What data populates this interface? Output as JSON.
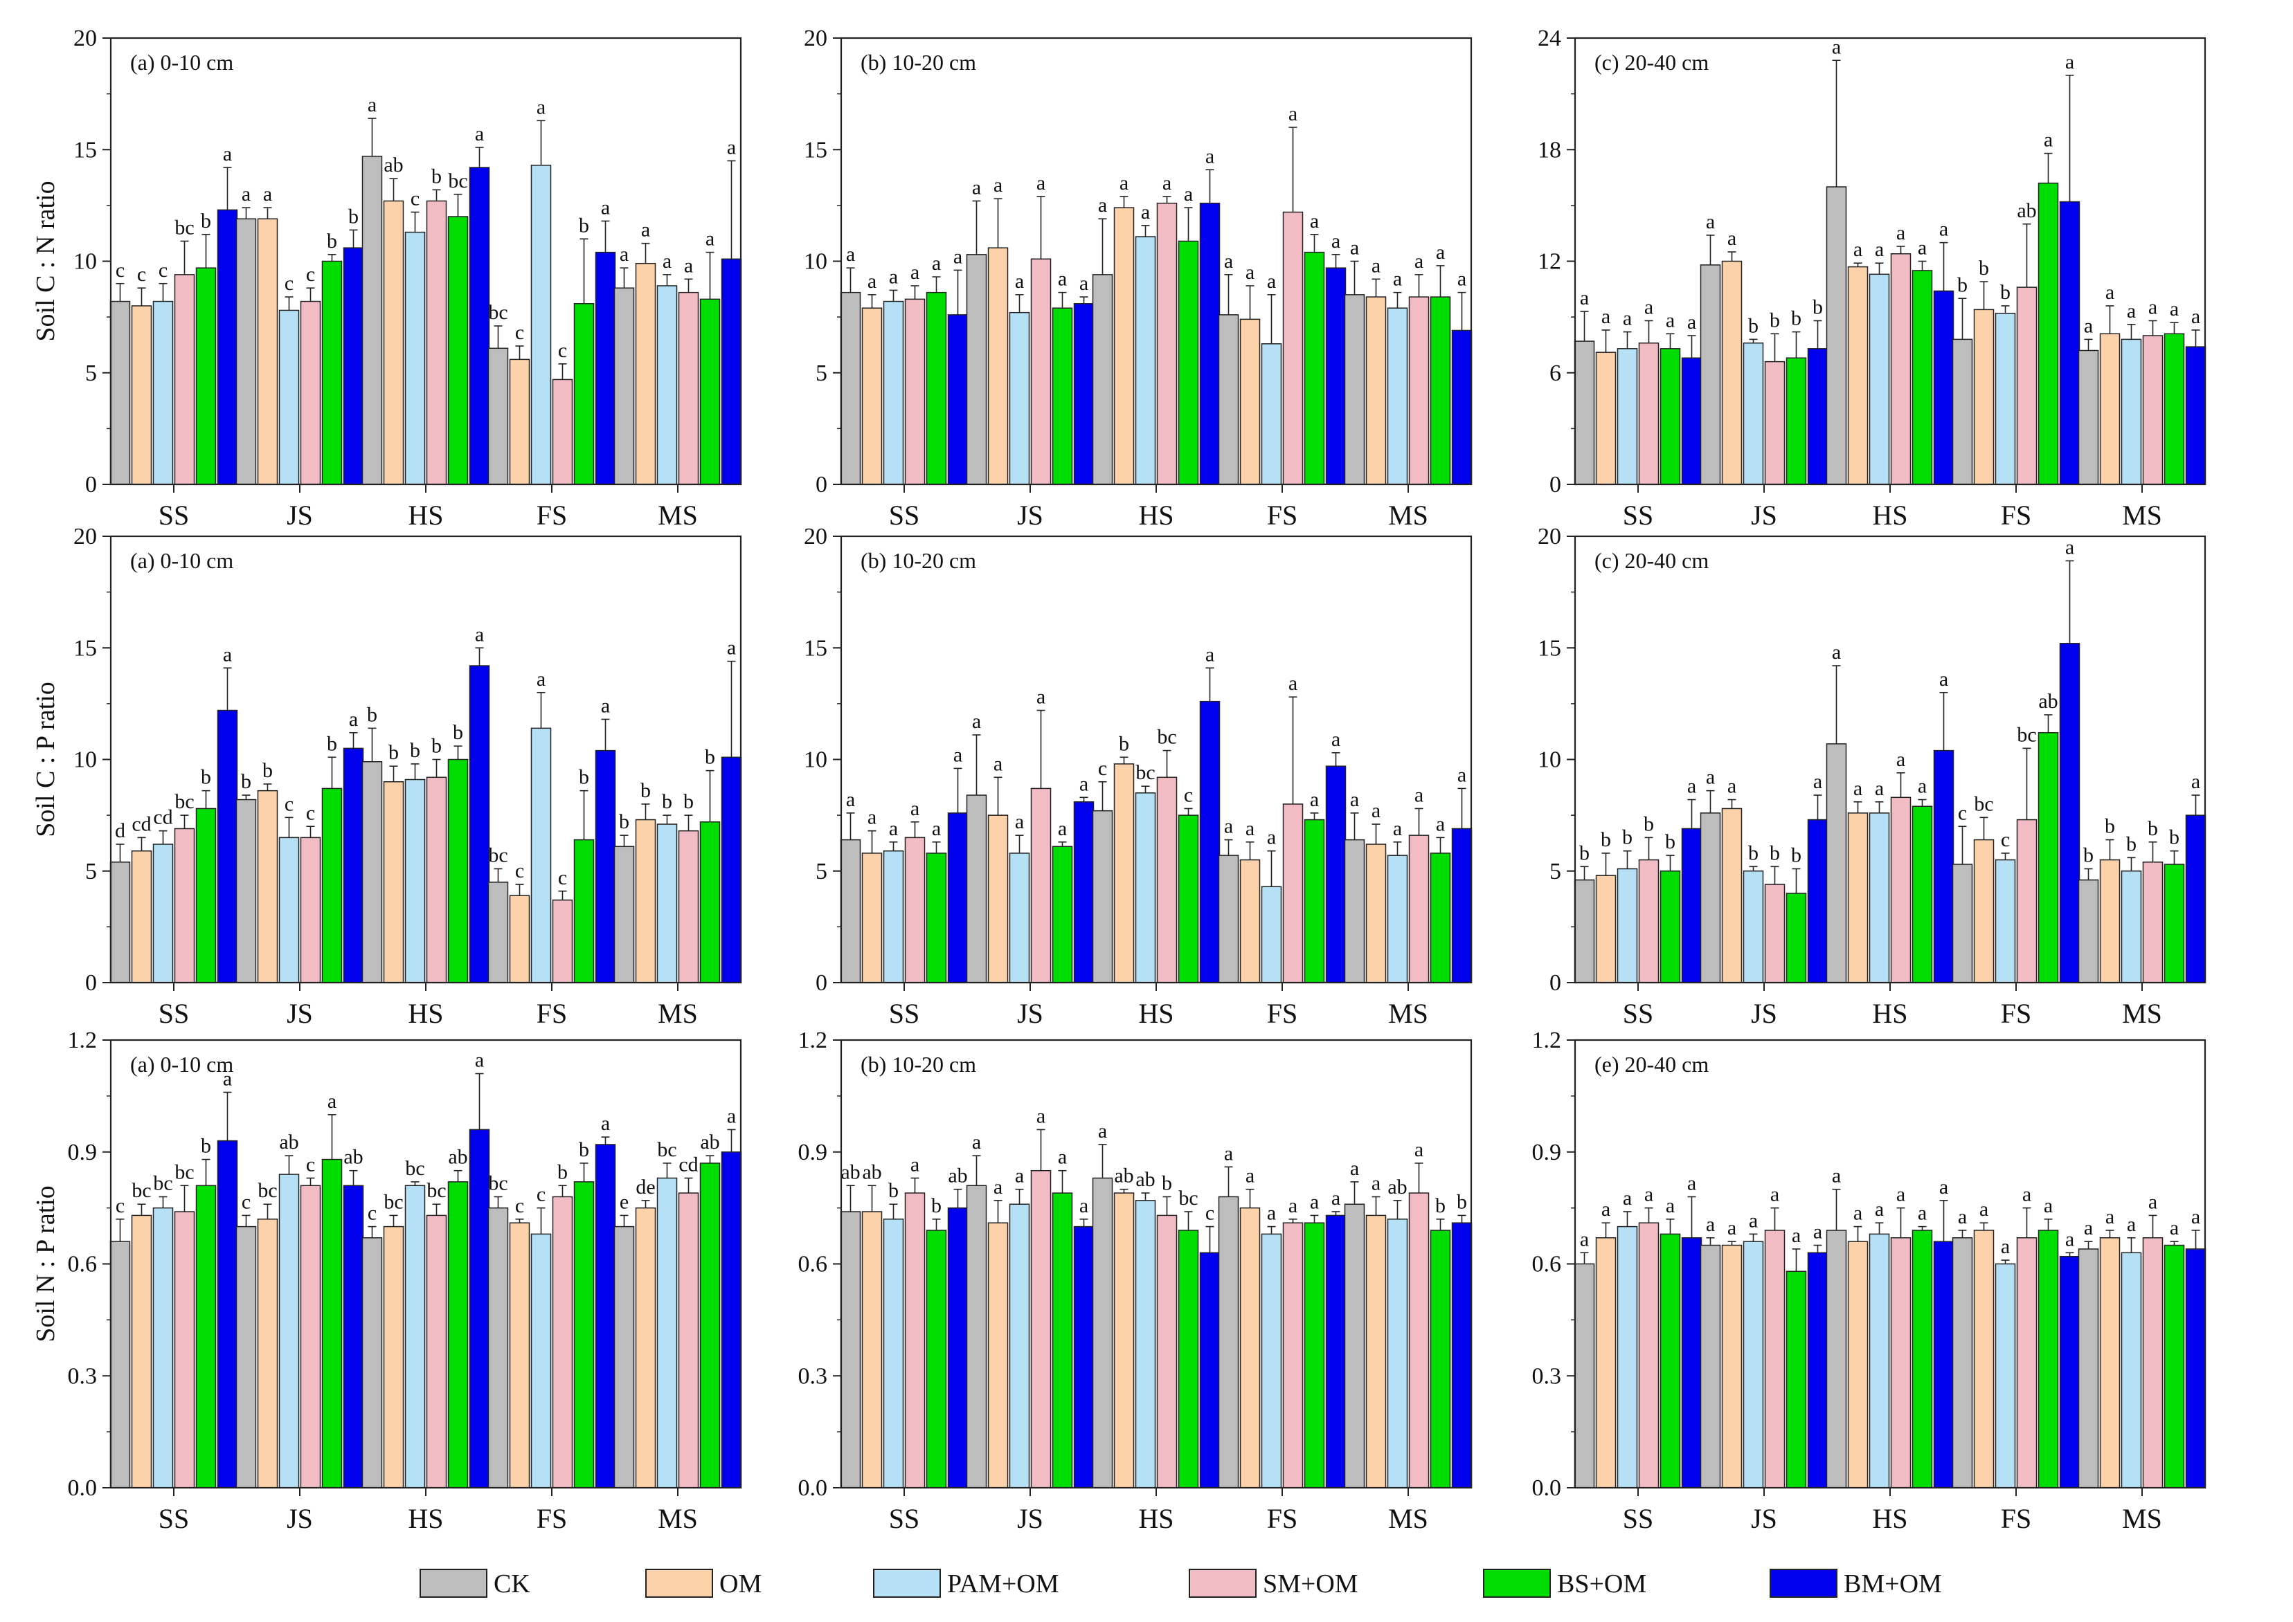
{
  "figure": {
    "treatments": [
      "CK",
      "OM",
      "PAM+OM",
      "SM+OM",
      "BS+OM",
      "BM+OM"
    ],
    "treatment_colors": [
      "#bdbdbd",
      "#fcd2aa",
      "#b5e0f5",
      "#f2bcc4",
      "#00dd00",
      "#0000ee"
    ],
    "sites": [
      "SS",
      "JS",
      "HS",
      "FS",
      "MS"
    ],
    "row_labels": [
      "Soil C : N ratio",
      "Soil C : P ratio",
      "Soil N : P ratio"
    ]
  },
  "chart_data": [
    {
      "type": "bar",
      "row": 0,
      "col": 0,
      "title": "(a) 0-10 cm",
      "ylabel": "Soil C : N ratio",
      "ylim": [
        0,
        20
      ],
      "yticks": [
        "0",
        "5",
        "10",
        "15",
        "20"
      ],
      "categories": [
        "SS",
        "JS",
        "HS",
        "FS",
        "MS"
      ],
      "values": [
        [
          8.2,
          8.0,
          8.2,
          9.4,
          9.7,
          12.3
        ],
        [
          11.9,
          11.9,
          7.8,
          8.2,
          10.0,
          10.6
        ],
        [
          14.7,
          12.7,
          11.3,
          12.7,
          12.0,
          14.2
        ],
        [
          6.1,
          5.6,
          14.3,
          4.7,
          8.1,
          10.4
        ],
        [
          8.8,
          9.9,
          8.9,
          8.6,
          8.3,
          10.1
        ]
      ],
      "errors": [
        [
          0.8,
          0.8,
          0.8,
          1.5,
          1.5,
          1.9
        ],
        [
          0.5,
          0.5,
          0.6,
          0.6,
          0.3,
          0.8
        ],
        [
          1.7,
          1.0,
          0.9,
          0.5,
          1.0,
          0.9
        ],
        [
          1.0,
          0.6,
          2.0,
          0.7,
          2.9,
          1.4
        ],
        [
          0.9,
          0.9,
          0.5,
          0.6,
          2.1,
          4.4
        ]
      ],
      "letters": [
        [
          "c",
          "c",
          "c",
          "bc",
          "b",
          "a"
        ],
        [
          "a",
          "a",
          "c",
          "c",
          "b",
          "b"
        ],
        [
          "a",
          "ab",
          "c",
          "b",
          "bc",
          "a"
        ],
        [
          "bc",
          "c",
          "a",
          "c",
          "b",
          "a"
        ],
        [
          "a",
          "a",
          "a",
          "a",
          "a",
          "a"
        ]
      ]
    },
    {
      "type": "bar",
      "row": 0,
      "col": 1,
      "title": "(b) 10-20 cm",
      "ylabel": "",
      "ylim": [
        0,
        20
      ],
      "yticks": [
        "0",
        "5",
        "10",
        "15",
        "20"
      ],
      "categories": [
        "SS",
        "JS",
        "HS",
        "FS",
        "MS"
      ],
      "values": [
        [
          8.6,
          7.9,
          8.2,
          8.3,
          8.6,
          7.6
        ],
        [
          10.3,
          10.6,
          7.7,
          10.1,
          7.9,
          8.1
        ],
        [
          9.4,
          12.4,
          11.1,
          12.6,
          10.9,
          12.6
        ],
        [
          7.6,
          7.4,
          6.3,
          12.2,
          10.4,
          9.7
        ],
        [
          8.5,
          8.4,
          7.9,
          8.4,
          8.4,
          6.9
        ]
      ],
      "errors": [
        [
          1.1,
          0.6,
          0.5,
          0.6,
          0.7,
          2.0
        ],
        [
          2.4,
          2.2,
          0.8,
          2.8,
          0.7,
          0.3
        ],
        [
          2.5,
          0.5,
          0.5,
          0.3,
          1.5,
          1.5
        ],
        [
          1.8,
          1.5,
          2.2,
          3.8,
          0.8,
          0.6
        ],
        [
          1.5,
          0.8,
          0.7,
          1.0,
          1.4,
          1.7
        ]
      ],
      "letters": [
        [
          "a",
          "a",
          "a",
          "a",
          "a",
          "a"
        ],
        [
          "a",
          "a",
          "a",
          "a",
          "a",
          "a"
        ],
        [
          "a",
          "a",
          "a",
          "a",
          "a",
          "a"
        ],
        [
          "a",
          "a",
          "a",
          "a",
          "a",
          "a"
        ],
        [
          "a",
          "a",
          "a",
          "a",
          "a",
          "a"
        ]
      ]
    },
    {
      "type": "bar",
      "row": 0,
      "col": 2,
      "title": "(c) 20-40 cm",
      "ylabel": "",
      "ylim": [
        0,
        24
      ],
      "yticks": [
        "0",
        "6",
        "12",
        "18",
        "24"
      ],
      "categories": [
        "SS",
        "JS",
        "HS",
        "FS",
        "MS"
      ],
      "values": [
        [
          7.7,
          7.1,
          7.3,
          7.6,
          7.3,
          6.8
        ],
        [
          11.8,
          12.0,
          7.6,
          6.6,
          6.8,
          7.3
        ],
        [
          16.0,
          11.7,
          11.3,
          12.4,
          11.5,
          10.4
        ],
        [
          7.8,
          9.4,
          9.2,
          10.6,
          16.2,
          15.2
        ],
        [
          7.2,
          8.1,
          7.8,
          8.0,
          8.1,
          7.4
        ]
      ],
      "errors": [
        [
          1.6,
          1.2,
          0.9,
          1.2,
          0.8,
          1.2
        ],
        [
          1.6,
          0.5,
          0.2,
          1.5,
          1.4,
          1.5
        ],
        [
          6.8,
          0.2,
          0.6,
          0.4,
          0.5,
          2.6
        ],
        [
          2.2,
          1.5,
          0.4,
          3.4,
          1.6,
          6.8
        ],
        [
          0.6,
          1.5,
          0.8,
          0.8,
          0.6,
          0.9
        ]
      ],
      "letters": [
        [
          "a",
          "a",
          "a",
          "a",
          "a",
          "a"
        ],
        [
          "a",
          "a",
          "b",
          "b",
          "b",
          "b"
        ],
        [
          "a",
          "a",
          "a",
          "a",
          "a",
          "a"
        ],
        [
          "b",
          "b",
          "b",
          "ab",
          "a",
          "a"
        ],
        [
          "a",
          "a",
          "a",
          "a",
          "a",
          "a"
        ]
      ]
    },
    {
      "type": "bar",
      "row": 1,
      "col": 0,
      "title": "(a) 0-10 cm",
      "ylabel": "Soil C : P ratio",
      "ylim": [
        0,
        20
      ],
      "yticks": [
        "0",
        "5",
        "10",
        "15",
        "20"
      ],
      "categories": [
        "SS",
        "JS",
        "HS",
        "FS",
        "MS"
      ],
      "values": [
        [
          5.4,
          5.9,
          6.2,
          6.9,
          7.8,
          12.2
        ],
        [
          8.2,
          8.6,
          6.5,
          6.5,
          8.7,
          10.5
        ],
        [
          9.9,
          9.0,
          9.1,
          9.2,
          10.0,
          14.2
        ],
        [
          4.5,
          3.9,
          11.4,
          3.7,
          6.4,
          10.4
        ],
        [
          6.1,
          7.3,
          7.1,
          6.8,
          7.2,
          10.1
        ]
      ],
      "errors": [
        [
          0.8,
          0.6,
          0.6,
          0.6,
          0.8,
          1.9
        ],
        [
          0.2,
          0.3,
          0.9,
          0.5,
          1.4,
          0.7
        ],
        [
          1.5,
          0.7,
          0.7,
          0.8,
          0.6,
          0.8
        ],
        [
          0.6,
          0.5,
          1.6,
          0.4,
          2.2,
          1.4
        ],
        [
          0.5,
          0.7,
          0.4,
          0.7,
          2.3,
          4.3
        ]
      ],
      "letters": [
        [
          "d",
          "cd",
          "cd",
          "bc",
          "b",
          "a"
        ],
        [
          "b",
          "b",
          "c",
          "c",
          "b",
          "a"
        ],
        [
          "b",
          "b",
          "b",
          "b",
          "b",
          "a"
        ],
        [
          "bc",
          "c",
          "a",
          "c",
          "b",
          "a"
        ],
        [
          "b",
          "b",
          "b",
          "b",
          "b",
          "a"
        ]
      ]
    },
    {
      "type": "bar",
      "row": 1,
      "col": 1,
      "title": "(b) 10-20 cm",
      "ylabel": "",
      "ylim": [
        0,
        20
      ],
      "yticks": [
        "0",
        "5",
        "10",
        "15",
        "20"
      ],
      "categories": [
        "SS",
        "JS",
        "HS",
        "FS",
        "MS"
      ],
      "values": [
        [
          6.4,
          5.8,
          5.9,
          6.5,
          5.8,
          7.6
        ],
        [
          8.4,
          7.5,
          5.8,
          8.7,
          6.1,
          8.1
        ],
        [
          7.7,
          9.8,
          8.5,
          9.2,
          7.5,
          12.6
        ],
        [
          5.7,
          5.5,
          4.3,
          8.0,
          7.3,
          9.7
        ],
        [
          6.4,
          6.2,
          5.7,
          6.6,
          5.8,
          6.9
        ]
      ],
      "errors": [
        [
          1.2,
          1.0,
          0.4,
          0.7,
          0.5,
          2.0
        ],
        [
          2.7,
          1.7,
          0.8,
          3.5,
          0.2,
          0.2
        ],
        [
          1.3,
          0.3,
          0.3,
          1.2,
          0.3,
          1.5
        ],
        [
          0.7,
          0.8,
          1.6,
          4.8,
          0.3,
          0.6
        ],
        [
          1.2,
          0.9,
          0.6,
          1.2,
          0.7,
          1.8
        ]
      ],
      "letters": [
        [
          "a",
          "a",
          "a",
          "a",
          "a",
          "a"
        ],
        [
          "a",
          "a",
          "a",
          "a",
          "a",
          "a"
        ],
        [
          "c",
          "b",
          "bc",
          "bc",
          "c",
          "a"
        ],
        [
          "a",
          "a",
          "a",
          "a",
          "a",
          "a"
        ],
        [
          "a",
          "a",
          "a",
          "a",
          "a",
          "a"
        ]
      ]
    },
    {
      "type": "bar",
      "row": 1,
      "col": 2,
      "title": "(c) 20-40 cm",
      "ylabel": "",
      "ylim": [
        0,
        20
      ],
      "yticks": [
        "0",
        "5",
        "10",
        "15",
        "20"
      ],
      "categories": [
        "SS",
        "JS",
        "HS",
        "FS",
        "MS"
      ],
      "values": [
        [
          4.6,
          4.8,
          5.1,
          5.5,
          5.0,
          6.9
        ],
        [
          7.6,
          7.8,
          5.0,
          4.4,
          4.0,
          7.3
        ],
        [
          10.7,
          7.6,
          7.6,
          8.3,
          7.9,
          10.4
        ],
        [
          5.3,
          6.4,
          5.5,
          7.3,
          11.2,
          15.2
        ],
        [
          4.6,
          5.5,
          5.0,
          5.4,
          5.3,
          7.5
        ]
      ],
      "errors": [
        [
          0.6,
          1.0,
          0.8,
          1.0,
          0.7,
          1.3
        ],
        [
          1.0,
          0.4,
          0.2,
          0.8,
          1.1,
          1.1
        ],
        [
          3.5,
          0.5,
          0.5,
          1.1,
          0.3,
          2.6
        ],
        [
          1.7,
          1.0,
          0.3,
          3.2,
          0.8,
          3.7
        ],
        [
          0.5,
          0.9,
          0.6,
          0.9,
          0.6,
          0.9
        ]
      ],
      "letters": [
        [
          "b",
          "b",
          "b",
          "b",
          "b",
          "a"
        ],
        [
          "a",
          "a",
          "b",
          "b",
          "b",
          "a"
        ],
        [
          "a",
          "a",
          "a",
          "a",
          "a",
          "a"
        ],
        [
          "c",
          "bc",
          "c",
          "bc",
          "ab",
          "a"
        ],
        [
          "b",
          "b",
          "b",
          "b",
          "b",
          "a"
        ]
      ]
    },
    {
      "type": "bar",
      "row": 2,
      "col": 0,
      "title": "(a) 0-10 cm",
      "ylabel": "Soil N : P ratio",
      "ylim": [
        0,
        1.2
      ],
      "yticks": [
        "0.0",
        "0.3",
        "0.6",
        "0.9",
        "1.2"
      ],
      "categories": [
        "SS",
        "JS",
        "HS",
        "FS",
        "MS"
      ],
      "values": [
        [
          0.66,
          0.73,
          0.75,
          0.74,
          0.81,
          0.93
        ],
        [
          0.7,
          0.72,
          0.84,
          0.81,
          0.88,
          0.81
        ],
        [
          0.67,
          0.7,
          0.81,
          0.73,
          0.82,
          0.96
        ],
        [
          0.75,
          0.71,
          0.68,
          0.78,
          0.82,
          0.92
        ],
        [
          0.7,
          0.75,
          0.83,
          0.79,
          0.87,
          0.9
        ]
      ],
      "errors": [
        [
          0.06,
          0.03,
          0.03,
          0.07,
          0.07,
          0.13
        ],
        [
          0.03,
          0.04,
          0.05,
          0.02,
          0.12,
          0.04
        ],
        [
          0.03,
          0.03,
          0.01,
          0.03,
          0.03,
          0.15
        ],
        [
          0.03,
          0.01,
          0.07,
          0.03,
          0.05,
          0.02
        ],
        [
          0.03,
          0.02,
          0.04,
          0.04,
          0.02,
          0.06
        ]
      ],
      "letters": [
        [
          "c",
          "bc",
          "bc",
          "bc",
          "b",
          "a"
        ],
        [
          "c",
          "bc",
          "ab",
          "c",
          "a",
          "ab"
        ],
        [
          "c",
          "bc",
          "bc",
          "bc",
          "ab",
          "a"
        ],
        [
          "bc",
          "c",
          "c",
          "b",
          "b",
          "a"
        ],
        [
          "e",
          "de",
          "bc",
          "cd",
          "ab",
          "a"
        ]
      ]
    },
    {
      "type": "bar",
      "row": 2,
      "col": 1,
      "title": "(b) 10-20 cm",
      "ylabel": "",
      "ylim": [
        0,
        1.2
      ],
      "yticks": [
        "0.0",
        "0.3",
        "0.6",
        "0.9",
        "1.2"
      ],
      "categories": [
        "SS",
        "JS",
        "HS",
        "FS",
        "MS"
      ],
      "values": [
        [
          0.74,
          0.74,
          0.72,
          0.79,
          0.69,
          0.75
        ],
        [
          0.81,
          0.71,
          0.76,
          0.85,
          0.79,
          0.7
        ],
        [
          0.83,
          0.79,
          0.77,
          0.73,
          0.69,
          0.63
        ],
        [
          0.78,
          0.75,
          0.68,
          0.71,
          0.71,
          0.73
        ],
        [
          0.76,
          0.73,
          0.72,
          0.79,
          0.69,
          0.71
        ]
      ],
      "errors": [
        [
          0.07,
          0.07,
          0.04,
          0.04,
          0.03,
          0.05
        ],
        [
          0.08,
          0.06,
          0.04,
          0.11,
          0.06,
          0.02
        ],
        [
          0.09,
          0.01,
          0.02,
          0.05,
          0.05,
          0.07
        ],
        [
          0.08,
          0.05,
          0.02,
          0.01,
          0.02,
          0.01
        ],
        [
          0.06,
          0.05,
          0.05,
          0.08,
          0.03,
          0.02
        ]
      ],
      "letters": [
        [
          "ab",
          "ab",
          "b",
          "a",
          "b",
          "ab"
        ],
        [
          "a",
          "a",
          "a",
          "a",
          "a",
          "a"
        ],
        [
          "a",
          "ab",
          "ab",
          "b",
          "bc",
          "c"
        ],
        [
          "a",
          "a",
          "a",
          "a",
          "a",
          "a"
        ],
        [
          "a",
          "a",
          "ab",
          "a",
          "b",
          "b"
        ]
      ]
    },
    {
      "type": "bar",
      "row": 2,
      "col": 2,
      "title": "(e) 20-40 cm",
      "ylabel": "",
      "ylim": [
        0,
        1.2
      ],
      "yticks": [
        "0.0",
        "0.3",
        "0.6",
        "0.9",
        "1.2"
      ],
      "categories": [
        "SS",
        "JS",
        "HS",
        "FS",
        "MS"
      ],
      "values": [
        [
          0.6,
          0.67,
          0.7,
          0.71,
          0.68,
          0.67
        ],
        [
          0.65,
          0.65,
          0.66,
          0.69,
          0.58,
          0.63
        ],
        [
          0.69,
          0.66,
          0.68,
          0.67,
          0.69,
          0.66
        ],
        [
          0.67,
          0.69,
          0.6,
          0.67,
          0.69,
          0.62
        ],
        [
          0.64,
          0.67,
          0.63,
          0.67,
          0.65,
          0.64
        ]
      ],
      "errors": [
        [
          0.03,
          0.04,
          0.04,
          0.04,
          0.04,
          0.11
        ],
        [
          0.02,
          0.01,
          0.02,
          0.06,
          0.06,
          0.02
        ],
        [
          0.11,
          0.04,
          0.03,
          0.08,
          0.01,
          0.11
        ],
        [
          0.02,
          0.02,
          0.01,
          0.08,
          0.03,
          0.01
        ],
        [
          0.02,
          0.02,
          0.04,
          0.06,
          0.01,
          0.05
        ]
      ],
      "letters": [
        [
          "a",
          "a",
          "a",
          "a",
          "a",
          "a"
        ],
        [
          "a",
          "a",
          "a",
          "a",
          "a",
          "a"
        ],
        [
          "a",
          "a",
          "a",
          "a",
          "a",
          "a"
        ],
        [
          "a",
          "a",
          "a",
          "a",
          "a",
          "a"
        ],
        [
          "a",
          "a",
          "a",
          "a",
          "a",
          "a"
        ]
      ]
    }
  ]
}
